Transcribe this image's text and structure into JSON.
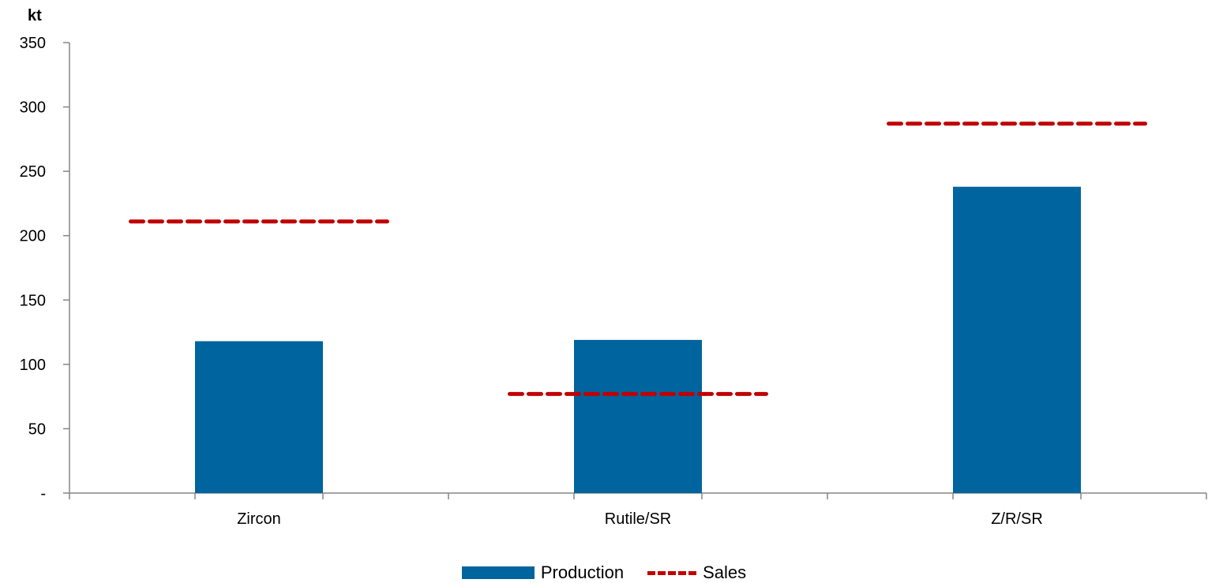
{
  "chart_data": {
    "type": "bar",
    "unit_label": "kt",
    "categories": [
      "Zircon",
      "Rutile/SR",
      "Z/R/SR"
    ],
    "series": [
      {
        "name": "Production",
        "kind": "bar",
        "values": [
          118,
          119,
          238
        ],
        "color": "#00649E"
      },
      {
        "name": "Sales",
        "kind": "dashed-line",
        "values": [
          211,
          77,
          287
        ],
        "color": "#C00000"
      }
    ],
    "ylim": [
      0,
      350
    ],
    "yticks": [
      0,
      50,
      100,
      150,
      200,
      250,
      300,
      350
    ],
    "ytick_labels": [
      "-",
      "50",
      "100",
      "150",
      "200",
      "250",
      "300",
      "350"
    ],
    "grid": false,
    "legend_position": "bottom"
  }
}
